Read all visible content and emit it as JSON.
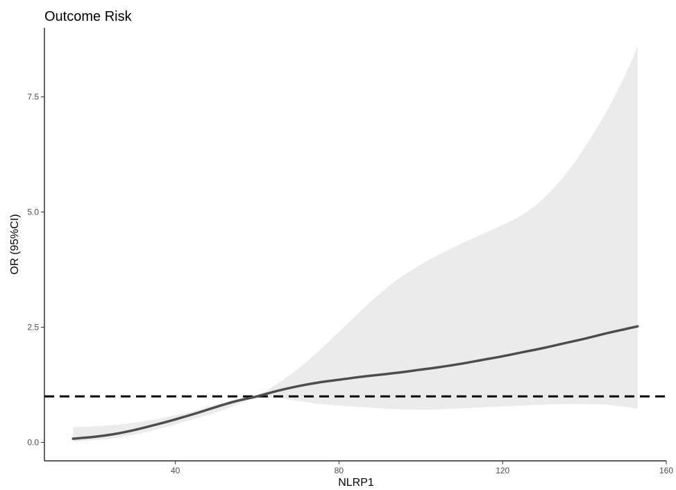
{
  "chart_data": {
    "type": "line",
    "title": "Outcome Risk",
    "xlabel": "NLRP1",
    "ylabel": "OR (95%CI)",
    "xlim": [
      8,
      160
    ],
    "ylim": [
      -0.4,
      9.0
    ],
    "x_ticks": [
      40,
      80,
      120,
      160
    ],
    "y_ticks": [
      0.0,
      2.5,
      5.0,
      7.5
    ],
    "x_tick_labels": [
      "40",
      "80",
      "120",
      "160"
    ],
    "y_tick_labels": [
      "0.0",
      "2.5",
      "5.0",
      "7.5"
    ],
    "grid": false,
    "legend": "none",
    "reference_line": {
      "y": 1.0,
      "style": "dashed",
      "color": "#000000"
    },
    "series": [
      {
        "x": [
          15,
          20,
          25,
          30,
          35,
          40,
          45,
          50,
          55,
          60,
          65,
          70,
          75,
          80,
          85,
          90,
          95,
          100,
          105,
          110,
          115,
          120,
          125,
          130,
          135,
          140,
          145,
          150,
          153
        ],
        "values": [
          0.08,
          0.12,
          0.18,
          0.27,
          0.38,
          0.5,
          0.63,
          0.77,
          0.9,
          1.0,
          1.12,
          1.22,
          1.3,
          1.36,
          1.42,
          1.47,
          1.52,
          1.58,
          1.64,
          1.71,
          1.79,
          1.87,
          1.96,
          2.05,
          2.15,
          2.25,
          2.36,
          2.46,
          2.52
        ],
        "lower": [
          0.02,
          0.05,
          0.09,
          0.17,
          0.27,
          0.39,
          0.52,
          0.65,
          0.82,
          0.97,
          0.96,
          0.9,
          0.84,
          0.8,
          0.77,
          0.74,
          0.72,
          0.71,
          0.72,
          0.74,
          0.76,
          0.78,
          0.8,
          0.82,
          0.83,
          0.83,
          0.82,
          0.77,
          0.73
        ],
        "upper": [
          0.33,
          0.35,
          0.38,
          0.43,
          0.5,
          0.59,
          0.69,
          0.82,
          0.94,
          1.03,
          1.28,
          1.6,
          1.98,
          2.4,
          2.83,
          3.23,
          3.58,
          3.86,
          4.1,
          4.32,
          4.52,
          4.72,
          4.95,
          5.3,
          5.78,
          6.4,
          7.12,
          7.98,
          8.6
        ],
        "line_color": "#4d4d4d",
        "band_color": "#ebebeb"
      }
    ]
  }
}
